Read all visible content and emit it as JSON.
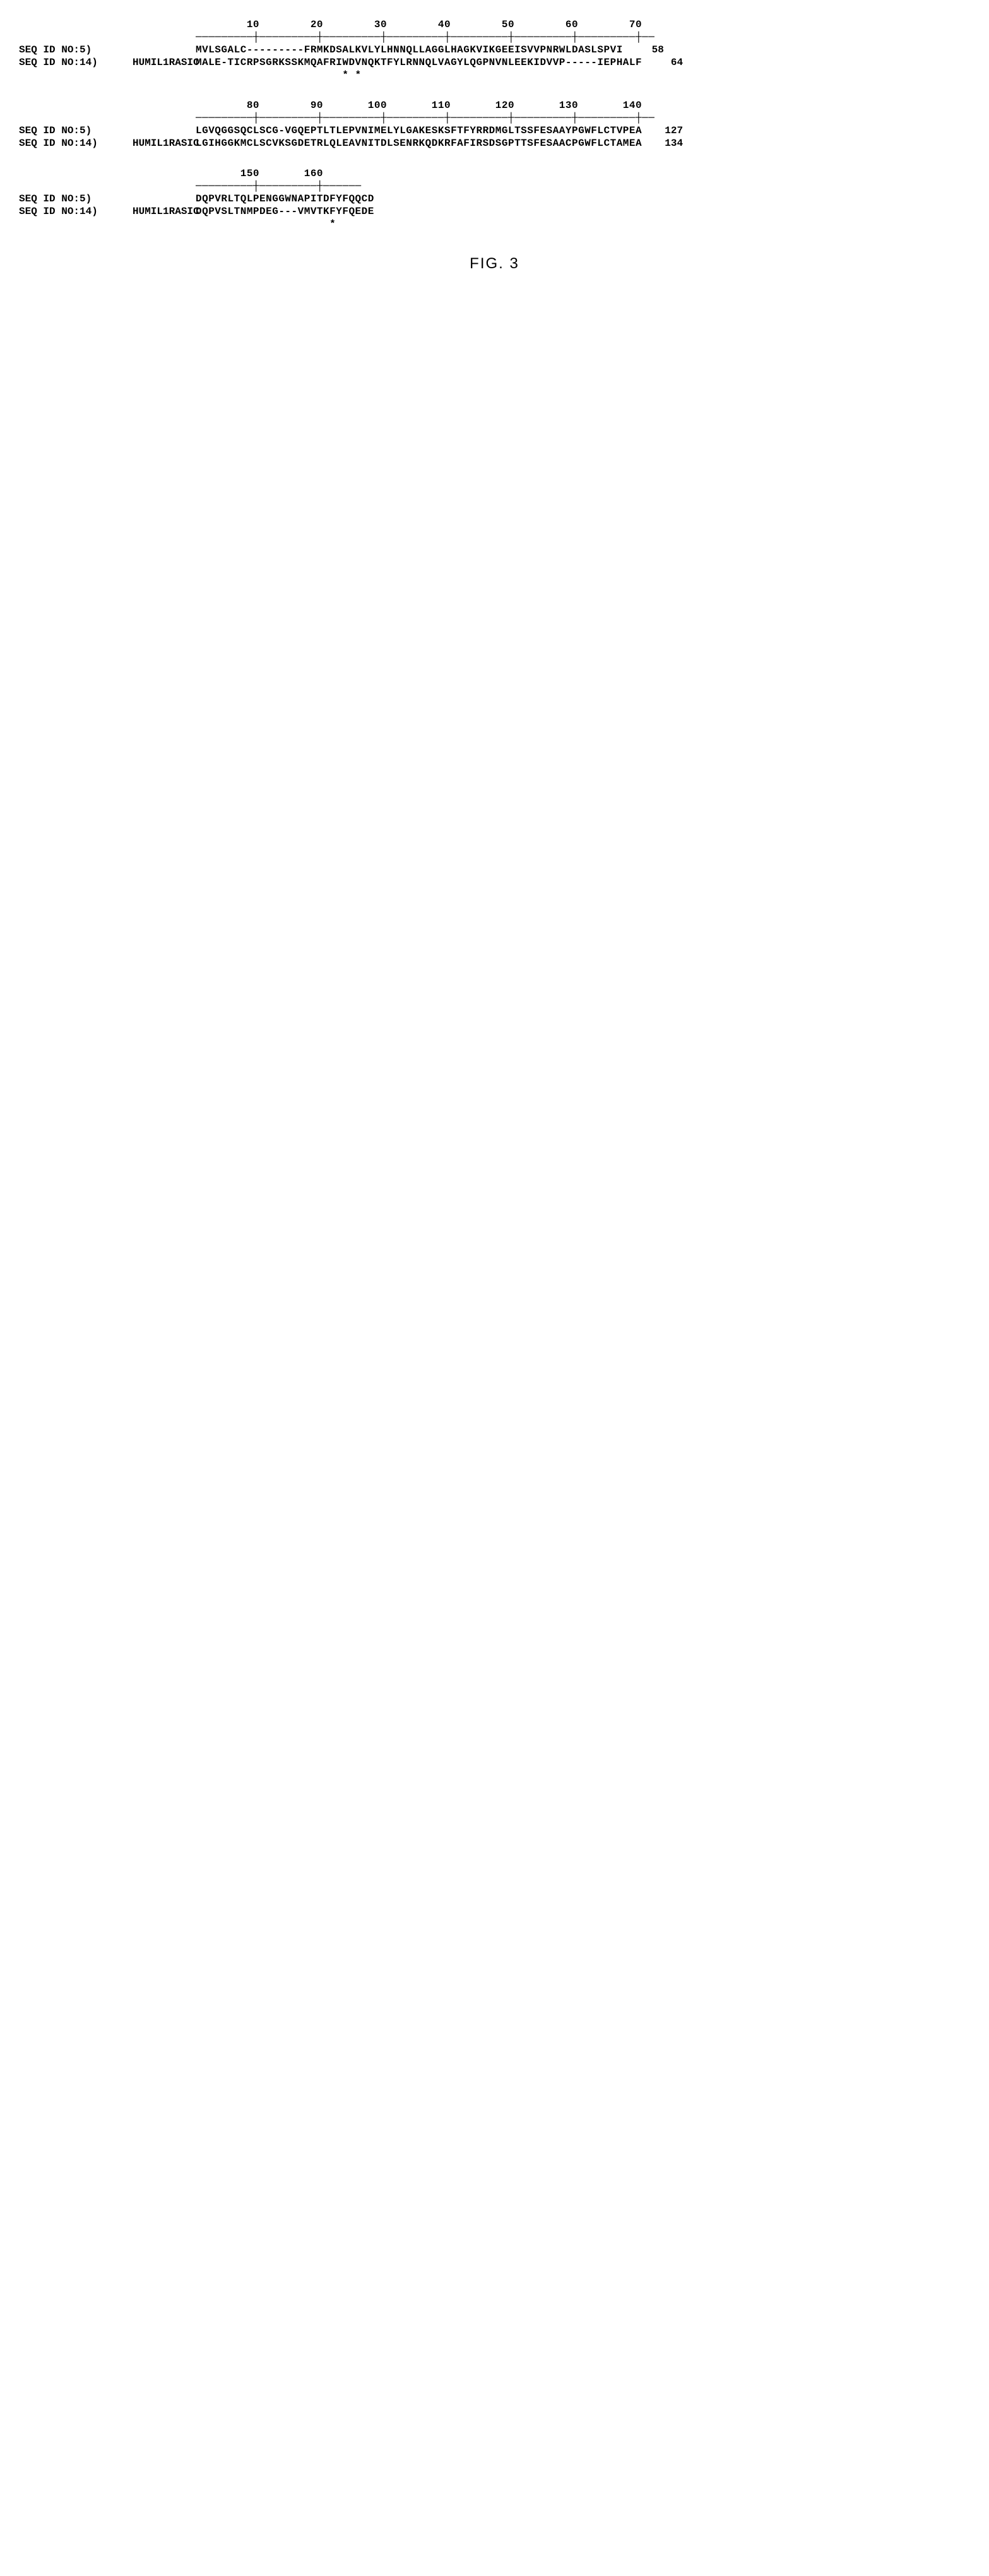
{
  "blocks": [
    {
      "ruler_numbers": "        10        20        30        40        50        60        70",
      "ruler_ticks": "─────────┼─────────┼─────────┼─────────┼─────────┼─────────┼─────────┼──",
      "rows": [
        {
          "seqid": "SEQ ID NO:5)",
          "name": "",
          "seq": "MVLSGALC---------FRMKDSALKVLYLHNNQLLAGGLHAGKVIKGEEISVVPNRWLDASLSPVI",
          "end": "58"
        },
        {
          "seqid": "SEQ ID NO:14)",
          "name": "HUMIL1RASIC",
          "seq": "MALE-TICRPSGRKSSKMQAFRIWDVNQKTFYLRNNQLVAGYLQGPNVNLEEKIDVVP-----IEPHALF",
          "end": "64"
        }
      ],
      "asterisks": "                       * *"
    },
    {
      "ruler_numbers": "        80        90       100       110       120       130       140",
      "ruler_ticks": "─────────┼─────────┼─────────┼─────────┼─────────┼─────────┼─────────┼──",
      "rows": [
        {
          "seqid": "SEQ ID NO:5)",
          "name": "",
          "seq": "LGVQGGSQCLSCG-VGQEPTLTLEPVNIMELYLGAKESKSFTFYRRDMGLTSSFESAAYPGWFLCTVPEA",
          "end": "127"
        },
        {
          "seqid": "SEQ ID NO:14)",
          "name": "HUMIL1RASIC",
          "seq": "LGIHGGKMCLSCVKSGDETRLQLEAVNITDLSENRKQDKRFAFIRSDSGPTTSFESAACPGWFLCTAMEA",
          "end": "134"
        }
      ],
      "asterisks": ""
    },
    {
      "ruler_numbers": "       150       160",
      "ruler_ticks": "─────────┼─────────┼──────",
      "rows": [
        {
          "seqid": "SEQ ID NO:5)",
          "name": "",
          "seq": "DQPVRLTQLPENGGWNAPITDFYFQQCD",
          "end": ""
        },
        {
          "seqid": "SEQ ID NO:14)",
          "name": "HUMIL1RASIC",
          "seq": "DQPVSLTNMPDEG---VMVTKFYFQEDE",
          "end": ""
        }
      ],
      "asterisks": "                     *"
    }
  ],
  "figure_label": "FIG. 3",
  "styling": {
    "font_family": "Courier New",
    "font_weight": "bold",
    "text_color": "#000000",
    "background_color": "#ffffff"
  }
}
